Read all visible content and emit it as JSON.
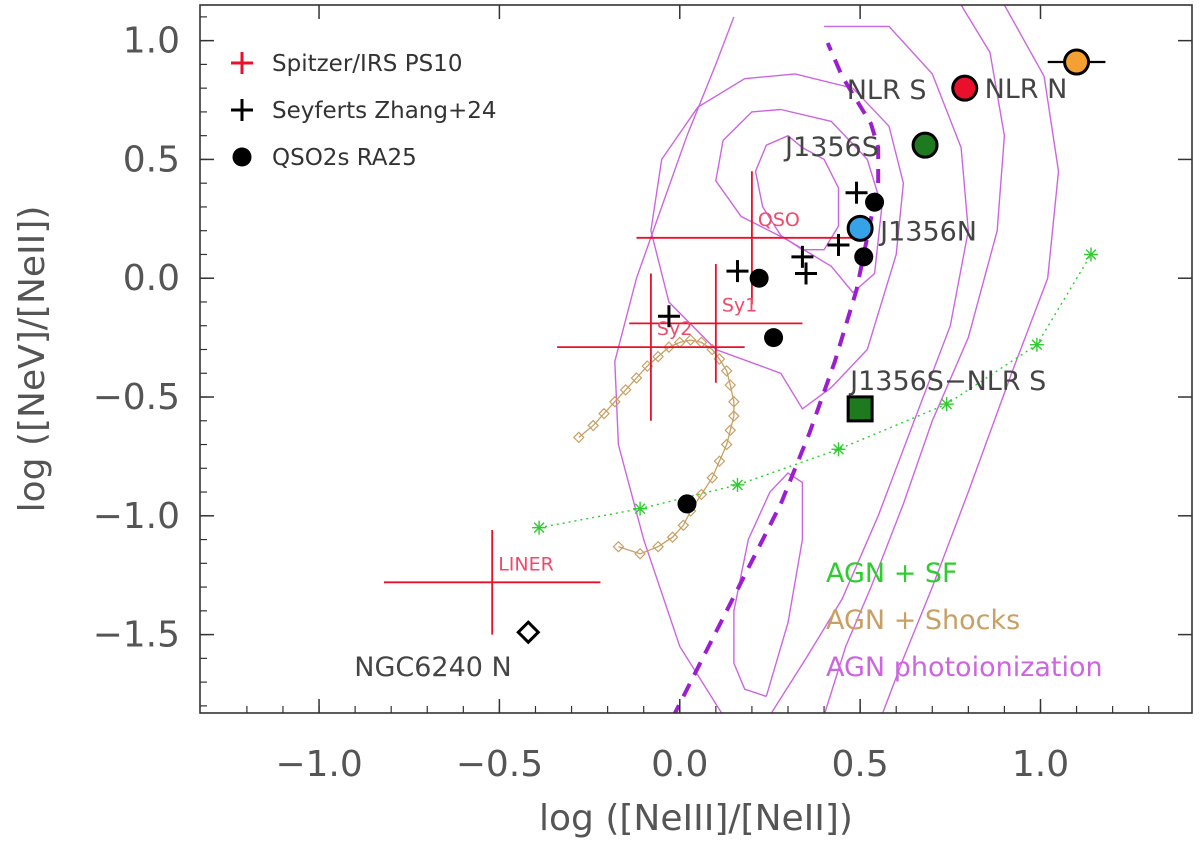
{
  "chart_data": {
    "type": "scatter",
    "title": "",
    "xlabel": "log ([NeIII]/[NeII])",
    "ylabel": "log ([NeV]/[NeII])",
    "xlim": [
      -1.33,
      1.42
    ],
    "ylim": [
      -1.83,
      1.15
    ],
    "x_ticks": [
      -1.0,
      -0.5,
      0.0,
      0.5,
      1.0
    ],
    "x_tick_labels": [
      "−1.0",
      "−0.5",
      "0.0",
      "0.5",
      "1.0"
    ],
    "y_ticks": [
      -1.5,
      -1.0,
      -0.5,
      0.0,
      0.5,
      1.0
    ],
    "y_tick_labels": [
      "−1.5",
      "−1.0",
      "−0.5",
      "0.0",
      "0.5",
      "1.0"
    ],
    "grid": false,
    "legend": {
      "placement": "top-left",
      "entries": [
        {
          "label": "Spitzer/IRS PS10",
          "marker": "plus",
          "color": "#e8102a"
        },
        {
          "label": "Seyferts Zhang+24",
          "marker": "plus",
          "color": "#000000"
        },
        {
          "label": "QSO2s RA25",
          "marker": "dot",
          "color": "#000000"
        }
      ]
    },
    "ps10_references": [
      {
        "label": "QSO",
        "x": 0.2,
        "y": 0.17,
        "xerr": 0.32,
        "yerr": 0.28
      },
      {
        "label": "Sy1",
        "x": 0.1,
        "y": -0.19,
        "xerr": 0.24,
        "yerr": 0.25
      },
      {
        "label": "Sy2",
        "x": -0.08,
        "y": -0.29,
        "xerr": 0.26,
        "yerr": 0.31
      },
      {
        "label": "LINER",
        "x": -0.52,
        "y": -1.28,
        "xerr": 0.3,
        "yerr": 0.22
      }
    ],
    "seyferts_zhang24": [
      {
        "x": -0.03,
        "y": -0.16
      },
      {
        "x": 0.16,
        "y": 0.03
      },
      {
        "x": 0.34,
        "y": 0.09
      },
      {
        "x": 0.35,
        "y": 0.02
      },
      {
        "x": 0.44,
        "y": 0.14
      },
      {
        "x": 0.49,
        "y": 0.36
      }
    ],
    "qso2s_ra25": [
      {
        "x": 0.22,
        "y": 0.0
      },
      {
        "x": 0.26,
        "y": -0.25
      },
      {
        "x": 0.02,
        "y": -0.95
      },
      {
        "x": 0.51,
        "y": 0.09
      },
      {
        "x": 0.54,
        "y": 0.32
      }
    ],
    "labeled_points": [
      {
        "label": "NLR S",
        "x": 0.79,
        "y": 0.8,
        "marker": "dot",
        "color": "#e8102a"
      },
      {
        "label": "NLR N",
        "x": 1.1,
        "y": 0.91,
        "marker": "dot",
        "color": "#f4a032",
        "xerr": 0.08,
        "yerr": 0.05
      },
      {
        "label": "J1356S",
        "x": 0.68,
        "y": 0.56,
        "marker": "dot",
        "color": "#1f7a1f"
      },
      {
        "label": "J1356N",
        "x": 0.5,
        "y": 0.21,
        "marker": "dot",
        "color": "#36a3e8"
      },
      {
        "label": "J1356S−NLR S",
        "x": 0.5,
        "y": -0.55,
        "marker": "square",
        "color": "#1f7a1f"
      },
      {
        "label": "NGC6240 N",
        "x": -0.42,
        "y": -1.49,
        "marker": "diamond",
        "color": "#ffffff"
      }
    ],
    "model_grids": [
      {
        "label": "AGN + SF",
        "color": "#2ecc2e",
        "marker": "asterisk",
        "line": "dotted",
        "x": [
          -0.39,
          -0.11,
          0.16,
          0.44,
          0.74,
          0.99,
          1.14
        ],
        "y": [
          -1.05,
          -0.97,
          -0.87,
          -0.72,
          -0.53,
          -0.28,
          0.1
        ]
      },
      {
        "label": "AGN + Shocks",
        "color": "#c8a064",
        "marker": "diamond",
        "line": "solid",
        "x": [
          -0.28,
          -0.24,
          -0.21,
          -0.18,
          -0.15,
          -0.12,
          -0.09,
          -0.06,
          -0.03,
          0.0,
          0.03,
          0.06,
          0.09,
          0.11,
          0.13,
          0.14,
          0.15,
          0.15,
          0.14,
          0.13,
          0.11,
          0.09,
          0.06,
          0.03,
          0.01,
          -0.02,
          -0.06,
          -0.11,
          -0.17
        ],
        "y": [
          -0.67,
          -0.62,
          -0.57,
          -0.52,
          -0.47,
          -0.42,
          -0.37,
          -0.33,
          -0.29,
          -0.27,
          -0.26,
          -0.27,
          -0.3,
          -0.34,
          -0.39,
          -0.45,
          -0.52,
          -0.58,
          -0.64,
          -0.7,
          -0.77,
          -0.84,
          -0.91,
          -0.98,
          -1.04,
          -1.09,
          -1.13,
          -1.16,
          -1.13
        ]
      },
      {
        "label": "AGN photoionization",
        "color": "#cc66e0",
        "marker": "contour",
        "line": "solid",
        "ridge_line": {
          "color": "#9b1fd0",
          "line": "dashed",
          "x": [
            -0.02,
            0.08,
            0.18,
            0.28,
            0.36,
            0.43,
            0.49,
            0.53,
            0.55,
            0.55,
            0.53,
            0.49,
            0.45,
            0.41
          ],
          "y": [
            -1.85,
            -1.55,
            -1.25,
            -0.95,
            -0.65,
            -0.35,
            -0.05,
            0.25,
            0.4,
            0.55,
            0.65,
            0.75,
            0.85,
            0.99
          ]
        },
        "contours": [
          {
            "x": [
              0.34,
              0.4,
              0.44,
              0.44,
              0.4,
              0.34,
              0.28,
              0.23,
              0.21,
              0.24,
              0.3,
              0.34
            ],
            "y": [
              0.55,
              0.5,
              0.38,
              0.22,
              0.12,
              0.12,
              0.18,
              0.3,
              0.45,
              0.56,
              0.6,
              0.55
            ]
          },
          {
            "x": [
              0.28,
              0.42,
              0.52,
              0.56,
              0.54,
              0.48,
              0.42,
              0.3,
              0.17,
              0.1,
              0.12,
              0.2,
              0.28
            ],
            "y": [
              0.71,
              0.66,
              0.5,
              0.3,
              0.02,
              -0.06,
              0.05,
              0.16,
              0.26,
              0.41,
              0.58,
              0.7,
              0.71
            ]
          },
          {
            "x": [
              0.32,
              0.48,
              0.58,
              0.62,
              0.6,
              0.52,
              0.42,
              0.34,
              0.28,
              0.1,
              -0.03,
              -0.08,
              -0.05,
              0.05,
              0.18,
              0.32
            ],
            "y": [
              0.86,
              0.8,
              0.64,
              0.4,
              0.1,
              -0.3,
              -0.46,
              -0.55,
              -0.4,
              -0.3,
              -0.1,
              0.2,
              0.5,
              0.72,
              0.84,
              0.86
            ]
          },
          {
            "x": [
              0.4,
              0.58,
              0.7,
              0.78,
              0.8,
              0.75,
              0.65,
              0.55,
              0.45,
              0.35,
              0.25,
              0.12,
              0.0,
              -0.1,
              -0.17,
              -0.18,
              -0.12,
              -0.05,
              0.02,
              0.1,
              0.15
            ],
            "y": [
              1.06,
              1.06,
              0.86,
              0.55,
              0.2,
              -0.2,
              -0.6,
              -1.0,
              -1.35,
              -1.6,
              -1.84,
              -1.84,
              -1.55,
              -1.1,
              -0.7,
              -0.35,
              0.0,
              0.3,
              0.6,
              0.9,
              1.1
            ]
          },
          {
            "x": [
              0.24,
              0.3,
              0.34,
              0.34,
              0.3,
              0.25,
              0.19,
              0.15,
              0.15,
              0.18,
              0.24
            ],
            "y": [
              -1.76,
              -1.45,
              -1.1,
              -0.86,
              -0.82,
              -0.9,
              -1.1,
              -1.4,
              -1.62,
              -1.73,
              -1.76
            ]
          },
          {
            "x": [
              0.78,
              0.86,
              0.9,
              0.88,
              0.8,
              0.7,
              0.62,
              0.53,
              0.46,
              0.4,
              0.34,
              0.3,
              0.2
            ],
            "y": [
              1.15,
              0.95,
              0.6,
              0.2,
              -0.25,
              -0.6,
              -0.95,
              -1.3,
              -1.55,
              -1.84,
              -1.84,
              -1.84,
              -1.84
            ]
          },
          {
            "x": [
              0.9,
              1.01,
              1.05,
              1.02,
              0.92,
              0.8,
              0.7,
              0.62,
              0.56
            ],
            "y": [
              1.15,
              0.85,
              0.45,
              0.0,
              -0.4,
              -0.9,
              -1.3,
              -1.6,
              -1.84
            ]
          }
        ]
      }
    ]
  }
}
